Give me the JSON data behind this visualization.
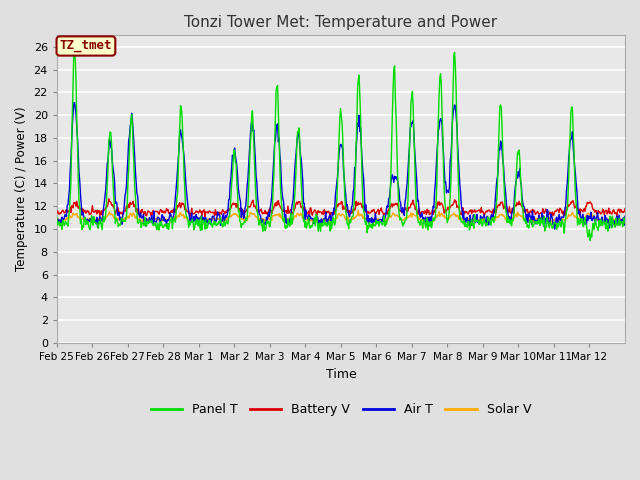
{
  "title": "Tonzi Tower Met: Temperature and Power",
  "xlabel": "Time",
  "ylabel": "Temperature (C) / Power (V)",
  "ylim": [
    0,
    27
  ],
  "yticks": [
    0,
    2,
    4,
    6,
    8,
    10,
    12,
    14,
    16,
    18,
    20,
    22,
    24,
    26
  ],
  "xtick_labels": [
    "Feb 25",
    "Feb 26",
    "Feb 27",
    "Feb 28",
    "Mar 1",
    "Mar 2",
    "Mar 3",
    "Mar 4",
    "Mar 5",
    "Mar 6",
    "Mar 7",
    "Mar 8",
    "Mar 9",
    "Mar 10",
    "Mar 11",
    "Mar 12"
  ],
  "annotation_text": "TZ_tmet",
  "annotation_color": "#880000",
  "annotation_bg": "#ffffcc",
  "colors": {
    "panel_t": "#00dd00",
    "battery_v": "#dd0000",
    "air_t": "#0000dd",
    "solar_v": "#ffaa00"
  },
  "legend_labels": [
    "Panel T",
    "Battery V",
    "Air T",
    "Solar V"
  ],
  "fig_bg": "#e0e0e0",
  "plot_bg": "#e8e8e8",
  "grid_color": "#ffffff",
  "figsize": [
    6.4,
    4.8
  ],
  "dpi": 100
}
